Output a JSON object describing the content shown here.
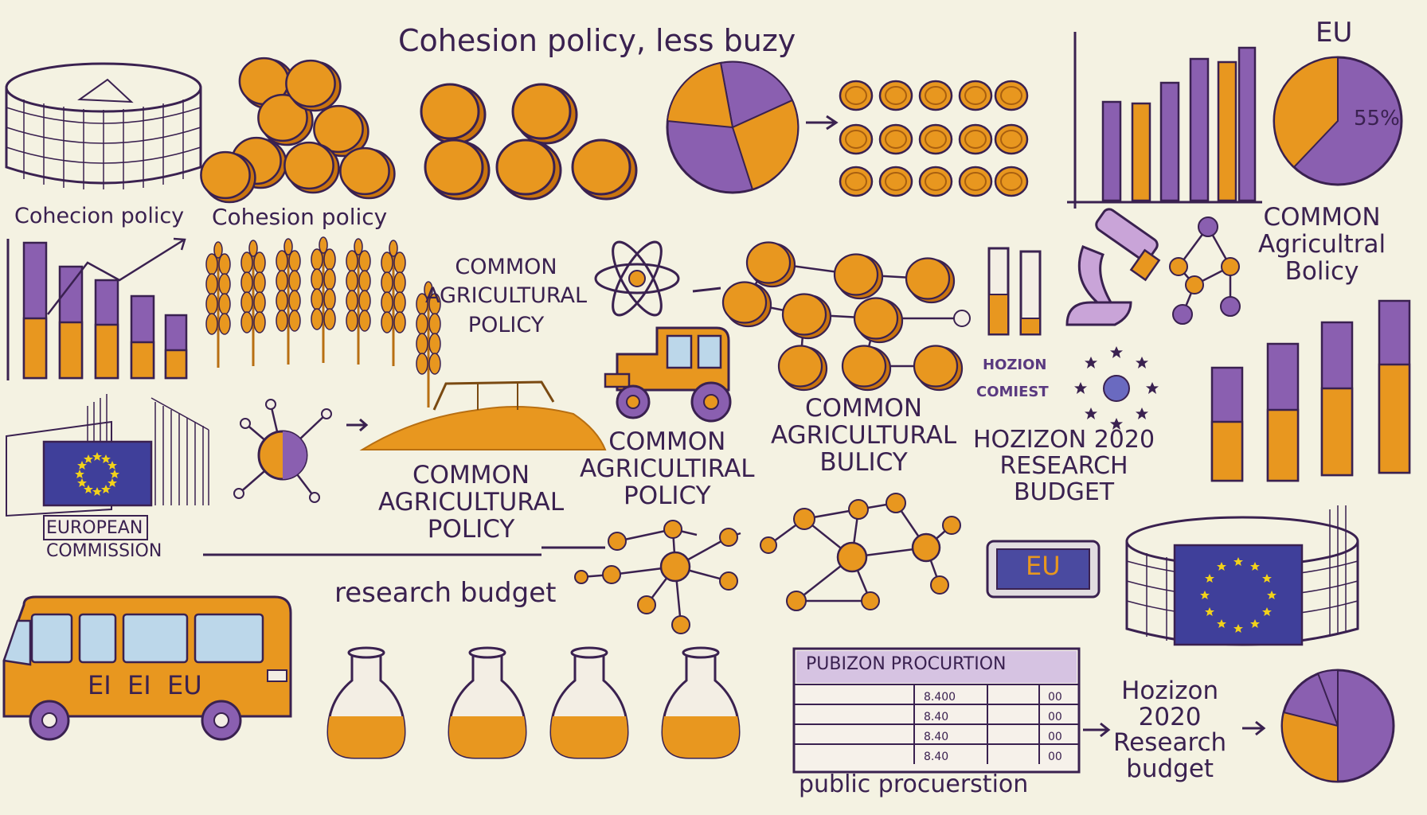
{
  "colors": {
    "orange": "#e8971f",
    "purple": "#8a5fb0",
    "dark": "#3a2150",
    "flag_blue": "#3f3f9a",
    "flag_star": "#f2d21a",
    "paper": "#f4f2e2"
  },
  "title": "Cohesion policy, less buzy",
  "eu_top": "EU",
  "pie_top_right_pct": "55%",
  "labels": {
    "cohesion_1": "Cohecion policy",
    "cohesion_2": "Cohesion policy",
    "cap_a": [
      "COMMON",
      "AGRICULTURAL",
      "POLICY"
    ],
    "cap_b": [
      "COMMON",
      "AGRICULTURAL",
      "POLICY"
    ],
    "cap_c": [
      "COMMON",
      "AGRICULTIRAL",
      "POLICY"
    ],
    "cap_d": [
      "COMMON",
      "AGRICULTURAL",
      "BULICY"
    ],
    "cap_e": [
      "COMMON",
      "Agricultral",
      "Bolicy"
    ],
    "hozion_small": "HOZION",
    "comiest_small": "COMIEST",
    "horizon_big": [
      "HOZIZON 2020",
      "RESEARCH",
      "BUDGET"
    ],
    "european_commission": [
      "EUROPEAN",
      "COMMISSION"
    ],
    "research_budget": "research budget",
    "eu_box": "EU",
    "bus_text": "EI  EI  EU",
    "procurement_header": "PUBIZON PROCURTION",
    "procurement_rows_left": [
      "8.400",
      "8.40",
      "8.40",
      "8.40"
    ],
    "procurement_rows_right": [
      "00",
      "00",
      "00",
      "00"
    ],
    "public_procurement": "public procuerstion",
    "horizon_bottom": [
      "Hozizon",
      "2020",
      "Research",
      "budget"
    ]
  },
  "icons": [
    "arena-icon",
    "coin-stack-icon",
    "coins-icon",
    "pie-chart-icon",
    "arrow-icon",
    "bar-chart-icon",
    "wheat-icon",
    "atom-icon",
    "network-icon",
    "tractor-icon",
    "eu-flag-icon",
    "microscope-icon",
    "test-tube-icon",
    "bus-icon",
    "flask-icon",
    "table-icon"
  ]
}
